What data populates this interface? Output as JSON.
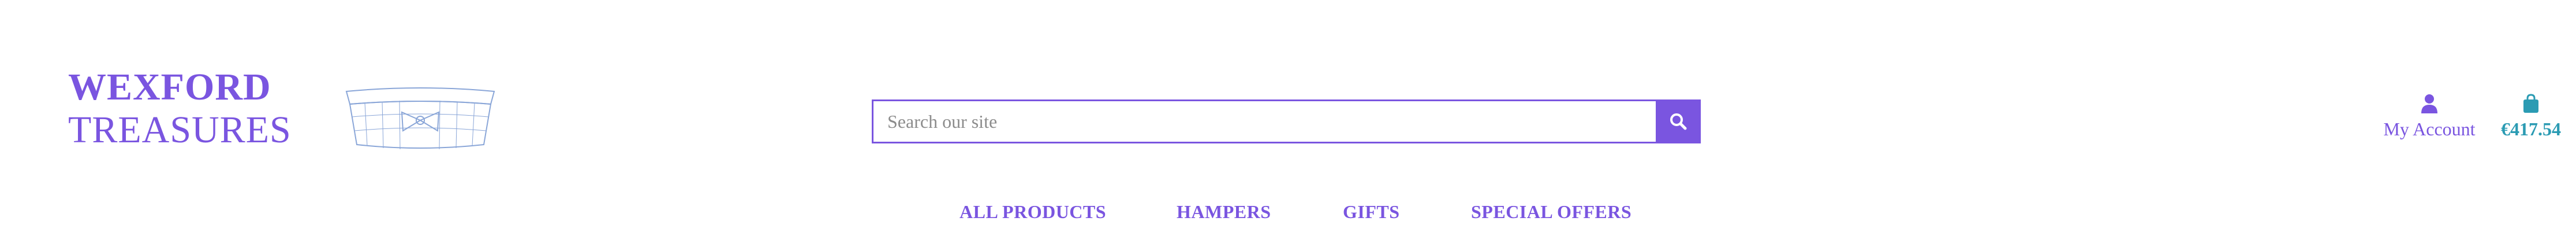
{
  "brand": {
    "line1": "WEXFORD",
    "line2": "TREASURES",
    "color": "#7a55e0"
  },
  "search": {
    "placeholder": "Search our site",
    "value": ""
  },
  "account": {
    "label": "My Account",
    "icon": "user-icon"
  },
  "cart": {
    "total": "€417.54",
    "icon": "shopping-bag-icon",
    "color": "#2b9bb3"
  },
  "nav": {
    "items": [
      {
        "label": "ALL PRODUCTS"
      },
      {
        "label": "HAMPERS"
      },
      {
        "label": "GIFTS"
      },
      {
        "label": "SPECIAL OFFERS"
      }
    ]
  }
}
